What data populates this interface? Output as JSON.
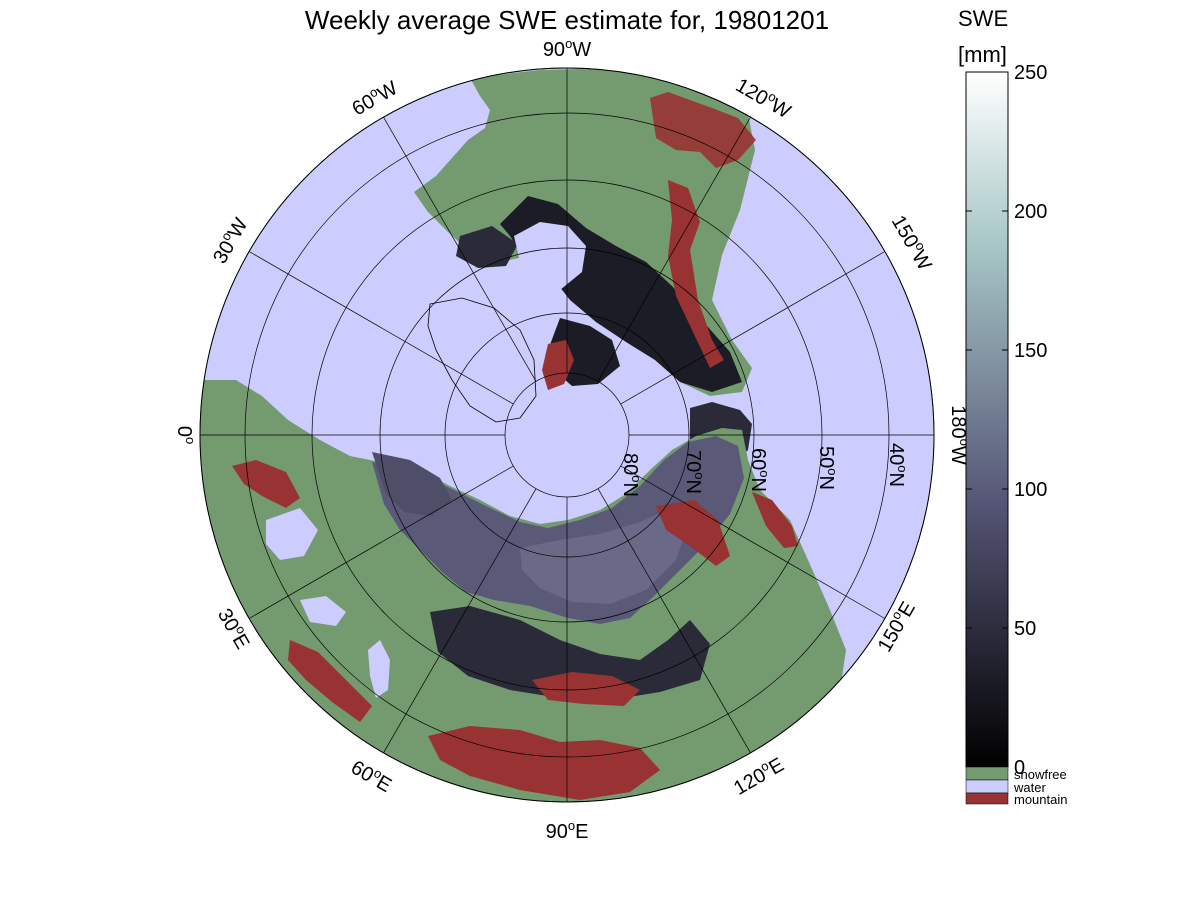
{
  "title": "Weekly average SWE estimate for, 19801201",
  "colorbar": {
    "label_line1": "SWE",
    "label_line2": "[mm]",
    "ticks": [
      "0",
      "50",
      "100",
      "150",
      "200",
      "250"
    ],
    "tick_values": [
      0,
      50,
      100,
      150,
      200,
      250
    ],
    "range": [
      0,
      250
    ],
    "colormap": "bone",
    "categories": [
      {
        "label": "snowfree",
        "color": "#749a70"
      },
      {
        "label": "water",
        "color": "#ccccfe"
      },
      {
        "label": "mountain",
        "color": "#993333"
      }
    ]
  },
  "map": {
    "projection": "north-polar-stereographic",
    "colors": {
      "ocean": "#ccccfe",
      "snowfree": "#749a70",
      "mountain": "#993333",
      "snow_deep": "#1c1c26",
      "snow_mid": "#4e4e68",
      "snow_light": "#6a6a88"
    },
    "longitude_labels": [
      {
        "text": "90",
        "sup": "o",
        "suffix": "W"
      },
      {
        "text": "120",
        "sup": "o",
        "suffix": "W"
      },
      {
        "text": "150",
        "sup": "o",
        "suffix": "W"
      },
      {
        "text": "180",
        "sup": "o",
        "suffix": "W"
      },
      {
        "text": "150",
        "sup": "o",
        "suffix": "E"
      },
      {
        "text": "120",
        "sup": "o",
        "suffix": "E"
      },
      {
        "text": "90",
        "sup": "o",
        "suffix": "E"
      },
      {
        "text": "60",
        "sup": "o",
        "suffix": "E"
      },
      {
        "text": "30",
        "sup": "o",
        "suffix": "E"
      },
      {
        "text": "0",
        "sup": "o",
        "suffix": ""
      },
      {
        "text": "30",
        "sup": "o",
        "suffix": "W"
      },
      {
        "text": "60",
        "sup": "o",
        "suffix": "W"
      }
    ],
    "latitude_labels": [
      {
        "text": "40",
        "sup": "o",
        "suffix": "N"
      },
      {
        "text": "50",
        "sup": "o",
        "suffix": "N"
      },
      {
        "text": "60",
        "sup": "o",
        "suffix": "N"
      },
      {
        "text": "70",
        "sup": "o",
        "suffix": "N"
      },
      {
        "text": "80",
        "sup": "o",
        "suffix": "N"
      }
    ]
  }
}
